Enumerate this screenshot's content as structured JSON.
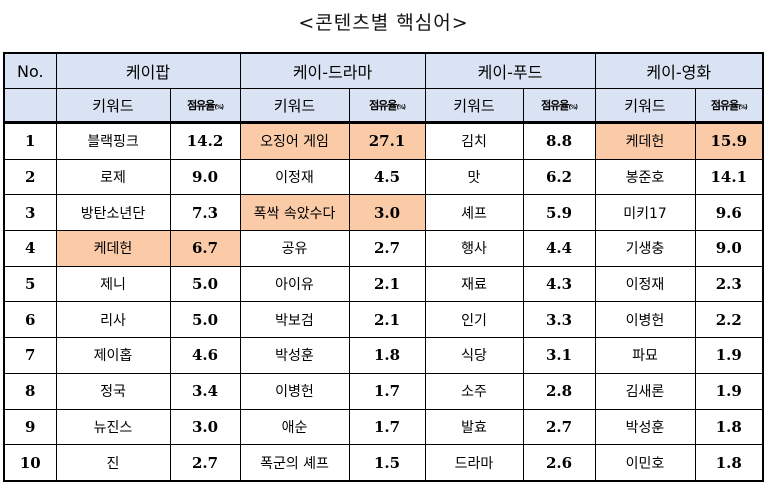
{
  "title": "<콘텐츠별 핵심어>",
  "colors": {
    "header_bg": "#dae3f3",
    "highlight_bg": "#fbcba8"
  },
  "table": {
    "no_header": "No.",
    "categories": [
      "케이팝",
      "케이-드라마",
      "케이-푸드",
      "케이-영화"
    ],
    "sub_headers": {
      "keyword": "키워드",
      "share": "점유율",
      "share_unit": "(%)"
    },
    "rows": [
      {
        "no": "1",
        "cells": [
          {
            "k": "블랙핑크",
            "v": "14.2",
            "hl": false
          },
          {
            "k": "오징어 게임",
            "v": "27.1",
            "hl": true
          },
          {
            "k": "김치",
            "v": "8.8",
            "hl": false
          },
          {
            "k": "케데헌",
            "v": "15.9",
            "hl": true
          }
        ]
      },
      {
        "no": "2",
        "cells": [
          {
            "k": "로제",
            "v": "9.0",
            "hl": false
          },
          {
            "k": "이정재",
            "v": "4.5",
            "hl": false
          },
          {
            "k": "맛",
            "v": "6.2",
            "hl": false
          },
          {
            "k": "봉준호",
            "v": "14.1",
            "hl": false
          }
        ]
      },
      {
        "no": "3",
        "cells": [
          {
            "k": "방탄소년단",
            "v": "7.3",
            "hl": false
          },
          {
            "k": "폭싹 속았수다",
            "v": "3.0",
            "hl": true
          },
          {
            "k": "셰프",
            "v": "5.9",
            "hl": false
          },
          {
            "k": "미키17",
            "v": "9.6",
            "hl": false
          }
        ]
      },
      {
        "no": "4",
        "cells": [
          {
            "k": "케데헌",
            "v": "6.7",
            "hl": true
          },
          {
            "k": "공유",
            "v": "2.7",
            "hl": false
          },
          {
            "k": "행사",
            "v": "4.4",
            "hl": false
          },
          {
            "k": "기생충",
            "v": "9.0",
            "hl": false
          }
        ]
      },
      {
        "no": "5",
        "cells": [
          {
            "k": "제니",
            "v": "5.0",
            "hl": false
          },
          {
            "k": "아이유",
            "v": "2.1",
            "hl": false
          },
          {
            "k": "재료",
            "v": "4.3",
            "hl": false
          },
          {
            "k": "이정재",
            "v": "2.3",
            "hl": false
          }
        ]
      },
      {
        "no": "6",
        "cells": [
          {
            "k": "리사",
            "v": "5.0",
            "hl": false
          },
          {
            "k": "박보검",
            "v": "2.1",
            "hl": false
          },
          {
            "k": "인기",
            "v": "3.3",
            "hl": false
          },
          {
            "k": "이병헌",
            "v": "2.2",
            "hl": false
          }
        ]
      },
      {
        "no": "7",
        "cells": [
          {
            "k": "제이홉",
            "v": "4.6",
            "hl": false
          },
          {
            "k": "박성훈",
            "v": "1.8",
            "hl": false
          },
          {
            "k": "식당",
            "v": "3.1",
            "hl": false
          },
          {
            "k": "파묘",
            "v": "1.9",
            "hl": false
          }
        ]
      },
      {
        "no": "8",
        "cells": [
          {
            "k": "정국",
            "v": "3.4",
            "hl": false
          },
          {
            "k": "이병헌",
            "v": "1.7",
            "hl": false
          },
          {
            "k": "소주",
            "v": "2.8",
            "hl": false
          },
          {
            "k": "김새론",
            "v": "1.9",
            "hl": false
          }
        ]
      },
      {
        "no": "9",
        "cells": [
          {
            "k": "뉴진스",
            "v": "3.0",
            "hl": false
          },
          {
            "k": "애순",
            "v": "1.7",
            "hl": false
          },
          {
            "k": "발효",
            "v": "2.7",
            "hl": false
          },
          {
            "k": "박성훈",
            "v": "1.8",
            "hl": false
          }
        ]
      },
      {
        "no": "10",
        "cells": [
          {
            "k": "진",
            "v": "2.7",
            "hl": false
          },
          {
            "k": "폭군의 셰프",
            "v": "1.5",
            "hl": false
          },
          {
            "k": "드라마",
            "v": "2.6",
            "hl": false
          },
          {
            "k": "이민호",
            "v": "1.8",
            "hl": false
          }
        ]
      }
    ]
  }
}
